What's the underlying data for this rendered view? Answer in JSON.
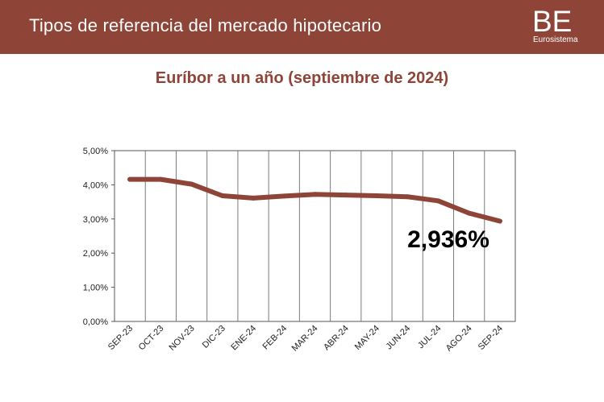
{
  "header": {
    "title": "Tipos de referencia del mercado hipotecario",
    "logo_letters": "BE",
    "logo_text": "Eurosistema",
    "background": "#8e4538"
  },
  "chart_data": {
    "type": "line",
    "title": "Euríbor a un año (septiembre de 2024)",
    "categories": [
      "SEP-23",
      "OCT-23",
      "NOV-23",
      "DIC-23",
      "ENE-24",
      "FEB-24",
      "MAR-24",
      "ABR-24",
      "MAY-24",
      "JUN-24",
      "JUL-24",
      "AGO-24",
      "SEP-24"
    ],
    "series": [
      {
        "values": [
          4.16,
          4.16,
          4.02,
          3.68,
          3.61,
          3.67,
          3.72,
          3.7,
          3.68,
          3.65,
          3.53,
          3.17,
          2.936
        ],
        "color": "#8e4538"
      }
    ],
    "y_ticks": [
      "0,00%",
      "1,00%",
      "2,00%",
      "3,00%",
      "4,00%",
      "5,00%"
    ],
    "ylim": [
      0,
      5
    ],
    "grid": "vertical",
    "annotation": "2,936%"
  }
}
